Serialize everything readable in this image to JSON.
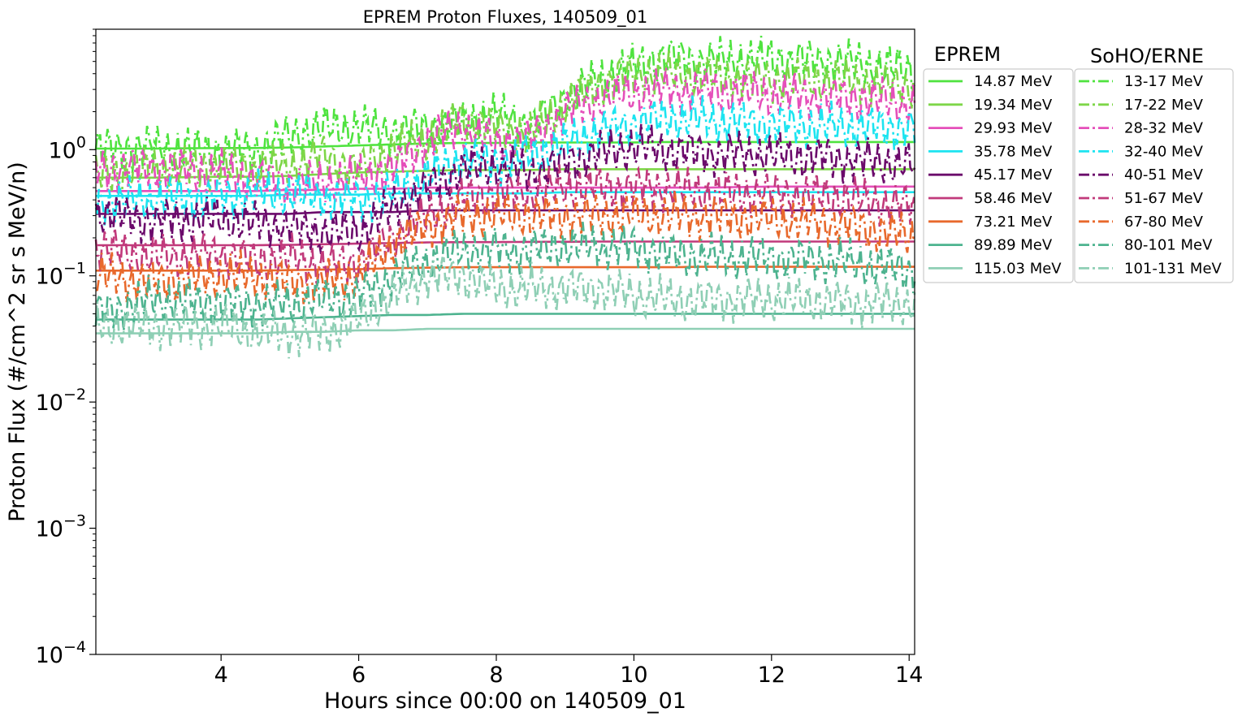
{
  "chart_data": {
    "type": "line",
    "title": "EPREM Proton Fluxes, 140509_01",
    "xlabel": "Hours since 00:00 on 140509_01",
    "ylabel": "Proton Flux (#/cm^2 sr s MeV/n)",
    "xlim": [
      2.18,
      14.08
    ],
    "ylim": [
      0.0001,
      9.0
    ],
    "yscale": "log",
    "x_ticks": [
      4,
      6,
      8,
      10,
      12,
      14
    ],
    "x_tick_labels": [
      "4",
      "6",
      "8",
      "10",
      "12",
      "14"
    ],
    "y_ticks": [
      {
        "value": 0.0001,
        "base": "10",
        "exp": "−4"
      },
      {
        "value": 0.001,
        "base": "10",
        "exp": "−3"
      },
      {
        "value": 0.01,
        "base": "10",
        "exp": "−2"
      },
      {
        "value": 0.1,
        "base": "10",
        "exp": "−1"
      },
      {
        "value": 1,
        "base": "10",
        "exp": "0"
      }
    ],
    "grid": false,
    "legend_eprem_title": "EPREM",
    "legend_erne_title": "SoHO/ERNE",
    "legend_placement": "outside-right",
    "x_anchors": [
      2.18,
      3,
      4,
      4.5,
      5,
      5.5,
      6,
      6.5,
      7,
      7.5,
      8,
      8.5,
      9,
      9.5,
      10,
      10.5,
      11,
      12,
      13,
      14.08
    ],
    "eprem_series": [
      {
        "name": "14.87 MeV",
        "color": "#4fe33f",
        "values": [
          1.02,
          1.02,
          1.03,
          1.03,
          1.04,
          1.06,
          1.08,
          1.1,
          1.12,
          1.13,
          1.13,
          1.14,
          1.14,
          1.14,
          1.14,
          1.15,
          1.15,
          1.15,
          1.15,
          1.15
        ]
      },
      {
        "name": "19.34 MeV",
        "color": "#7ed648",
        "values": [
          0.6,
          0.6,
          0.61,
          0.61,
          0.62,
          0.64,
          0.66,
          0.67,
          0.68,
          0.69,
          0.69,
          0.69,
          0.7,
          0.7,
          0.7,
          0.7,
          0.7,
          0.7,
          0.7,
          0.7
        ]
      },
      {
        "name": "29.93 MeV",
        "color": "#e54fba",
        "values": [
          0.47,
          0.47,
          0.47,
          0.47,
          0.48,
          0.48,
          0.49,
          0.49,
          0.5,
          0.5,
          0.5,
          0.5,
          0.5,
          0.5,
          0.5,
          0.5,
          0.5,
          0.51,
          0.51,
          0.51
        ]
      },
      {
        "name": "35.78 MeV",
        "color": "#1de4f0",
        "values": [
          0.43,
          0.43,
          0.43,
          0.43,
          0.44,
          0.44,
          0.44,
          0.45,
          0.45,
          0.45,
          0.45,
          0.45,
          0.46,
          0.46,
          0.46,
          0.46,
          0.46,
          0.46,
          0.46,
          0.46
        ]
      },
      {
        "name": "45.17 MeV",
        "color": "#6b0a6b",
        "values": [
          0.31,
          0.31,
          0.31,
          0.31,
          0.31,
          0.32,
          0.32,
          0.32,
          0.33,
          0.33,
          0.33,
          0.33,
          0.33,
          0.33,
          0.33,
          0.33,
          0.33,
          0.33,
          0.33,
          0.33
        ]
      },
      {
        "name": "58.46 MeV",
        "color": "#c13a7b",
        "values": [
          0.175,
          0.175,
          0.175,
          0.175,
          0.176,
          0.178,
          0.18,
          0.182,
          0.184,
          0.185,
          0.185,
          0.186,
          0.186,
          0.187,
          0.187,
          0.187,
          0.187,
          0.187,
          0.187,
          0.187
        ]
      },
      {
        "name": "73.21 MeV",
        "color": "#e8692c",
        "values": [
          0.11,
          0.11,
          0.11,
          0.11,
          0.111,
          0.112,
          0.113,
          0.115,
          0.116,
          0.117,
          0.117,
          0.117,
          0.117,
          0.117,
          0.117,
          0.117,
          0.118,
          0.118,
          0.118,
          0.118
        ]
      },
      {
        "name": "89.89 MeV",
        "color": "#4db38f",
        "values": [
          0.045,
          0.045,
          0.045,
          0.045,
          0.046,
          0.047,
          0.048,
          0.049,
          0.049,
          0.05,
          0.05,
          0.05,
          0.05,
          0.05,
          0.05,
          0.05,
          0.05,
          0.05,
          0.05,
          0.05
        ]
      },
      {
        "name": "115.03 MeV",
        "color": "#8fcfb5",
        "values": [
          0.035,
          0.035,
          0.035,
          0.035,
          0.036,
          0.036,
          0.037,
          0.037,
          0.038,
          0.038,
          0.038,
          0.038,
          0.038,
          0.038,
          0.038,
          0.038,
          0.038,
          0.038,
          0.038,
          0.038
        ]
      }
    ],
    "erne_series": [
      {
        "name": "13-17 MeV",
        "color": "#4fe33f",
        "values": [
          1.0,
          1.05,
          0.95,
          1.0,
          1.3,
          1.5,
          1.5,
          1.4,
          1.5,
          1.6,
          1.9,
          1.5,
          2.6,
          3.6,
          4.5,
          5.5,
          5.0,
          5.2,
          5.0,
          4.2
        ]
      },
      {
        "name": "17-22 MeV",
        "color": "#7ed648",
        "values": [
          0.6,
          0.7,
          0.75,
          0.7,
          0.75,
          0.9,
          0.7,
          1.0,
          1.2,
          1.8,
          1.5,
          1.3,
          2.3,
          3.3,
          4.0,
          4.0,
          3.8,
          3.6,
          3.5,
          3.2
        ]
      },
      {
        "name": "28-32 MeV",
        "color": "#e54fba",
        "values": [
          0.7,
          0.72,
          0.65,
          0.6,
          0.55,
          0.55,
          0.6,
          0.7,
          1.2,
          1.5,
          1.1,
          1.2,
          2.0,
          2.5,
          2.8,
          3.0,
          3.0,
          2.7,
          2.6,
          2.3
        ]
      },
      {
        "name": "32-40 MeV",
        "color": "#1de4f0",
        "values": [
          0.38,
          0.4,
          0.42,
          0.45,
          0.45,
          0.42,
          0.4,
          0.45,
          0.6,
          0.85,
          0.8,
          0.9,
          1.1,
          1.4,
          1.6,
          1.8,
          1.7,
          1.6,
          1.5,
          1.5
        ]
      },
      {
        "name": "40-51 MeV",
        "color": "#6b0a6b",
        "values": [
          0.32,
          0.27,
          0.28,
          0.26,
          0.24,
          0.22,
          0.22,
          0.35,
          0.5,
          0.7,
          0.75,
          0.65,
          0.8,
          0.95,
          1.05,
          1.0,
          0.95,
          0.9,
          0.85,
          0.75
        ]
      },
      {
        "name": "51-67 MeV",
        "color": "#c13a7b",
        "values": [
          0.17,
          0.14,
          0.15,
          0.13,
          0.14,
          0.12,
          0.13,
          0.2,
          0.3,
          0.4,
          0.45,
          0.45,
          0.5,
          0.5,
          0.5,
          0.5,
          0.45,
          0.45,
          0.42,
          0.35
        ]
      },
      {
        "name": "67-80 MeV",
        "color": "#e8692c",
        "values": [
          0.1,
          0.09,
          0.1,
          0.1,
          0.09,
          0.09,
          0.1,
          0.18,
          0.25,
          0.3,
          0.3,
          0.3,
          0.3,
          0.3,
          0.3,
          0.3,
          0.3,
          0.28,
          0.26,
          0.2
        ]
      },
      {
        "name": "80-101 MeV",
        "color": "#4db38f",
        "values": [
          0.05,
          0.065,
          0.06,
          0.06,
          0.06,
          0.065,
          0.07,
          0.1,
          0.13,
          0.16,
          0.16,
          0.16,
          0.17,
          0.17,
          0.17,
          0.15,
          0.14,
          0.14,
          0.13,
          0.11
        ]
      },
      {
        "name": "101-131 MeV",
        "color": "#8fcfb5",
        "values": [
          0.04,
          0.04,
          0.04,
          0.035,
          0.035,
          0.035,
          0.045,
          0.07,
          0.1,
          0.1,
          0.08,
          0.08,
          0.08,
          0.08,
          0.07,
          0.065,
          0.065,
          0.065,
          0.062,
          0.06
        ]
      }
    ]
  }
}
